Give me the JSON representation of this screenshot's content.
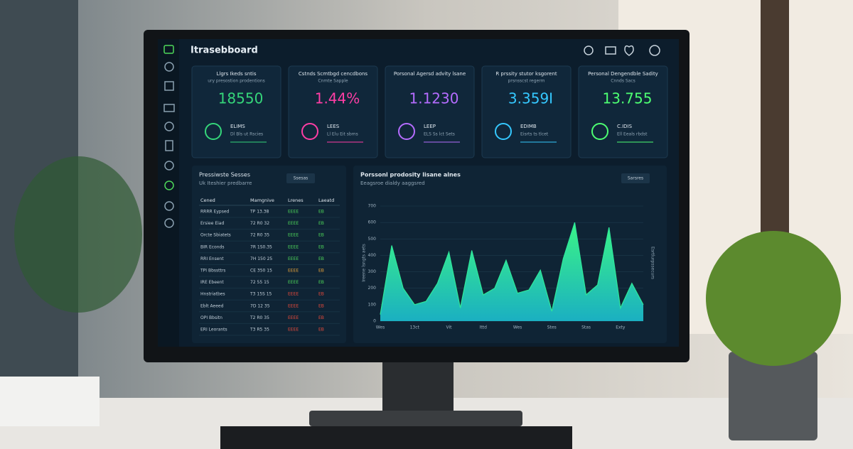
{
  "header": {
    "title": "Itrasebboard"
  },
  "cards": [
    {
      "title": "Llgrs Ikeds sntis",
      "subtitle": "ury presostion prodentions",
      "value": "18550",
      "label": "ELIMS",
      "note": "Dl Bls ut Rscies",
      "color": "#35d67a"
    },
    {
      "title": "Cstnds Scmtbgd cencdbons",
      "subtitle": "Cnmte Sapple",
      "value": "1.44%",
      "label": "LEES",
      "note": "Ll Elu Eit sbms",
      "color": "#ff3ea5"
    },
    {
      "title": "Porsonal Agersd advity lsane",
      "subtitle": "",
      "value": "1.1230",
      "label": "LEEP",
      "note": "ELS Ss lct Sets",
      "color": "#b56cff"
    },
    {
      "title": "R prssity stutor ksgorent",
      "subtitle": "prsnsscst regerm",
      "value": "3.359I",
      "label": "EDIMB",
      "note": "Eisrts ts tlcet",
      "color": "#35c8ff"
    },
    {
      "title": "Personal Dengendble Sadity",
      "subtitle": "Cnnds Sacs",
      "value": "13.755",
      "label": "C.IDIS",
      "note": "Ell Eeals rbdst",
      "color": "#4dff72"
    }
  ],
  "table": {
    "title": "Pressiwste Sesses",
    "subtitle": "Uk Iteshier predbarre",
    "button": "Ssesas",
    "columns": [
      "Cened",
      "Mamgnive",
      "Lrenes",
      "Laeatd"
    ],
    "rows": [
      [
        "RRRR Eypsed",
        "TP 13.38",
        "EEEE",
        "EB"
      ],
      [
        "Ersiee Eiad",
        "72 R0 32",
        "EEEE",
        "EB"
      ],
      [
        "Orcte Sbiatets",
        "72 R0 35",
        "EEEE",
        "EB"
      ],
      [
        "BIR Econds",
        "7R 1S0.35",
        "EEEE",
        "EB"
      ],
      [
        "RRI Ensent",
        "7H 150 25",
        "EEEE",
        "EB"
      ],
      [
        "TPI Bbssttrs",
        "CE 350 15",
        "EEEE",
        "EB"
      ],
      [
        "IRE Ebeent",
        "72 55 15",
        "EEEE",
        "EB"
      ],
      [
        "Hnstriatbes",
        "T3 15S 15",
        "EEEE",
        "EB"
      ],
      [
        "Eblt Aeeed",
        "7D 12 35",
        "EEEE",
        "EB"
      ],
      [
        "OPI Bbsitn",
        "T2 R0 35",
        "EEEE",
        "EB"
      ],
      [
        "ERI Leorants",
        "T3 R5 35",
        "EEEE",
        "EB"
      ]
    ],
    "status": [
      "#4ed85a",
      "#4ed85a",
      "#4ed85a",
      "#4ed85a",
      "#4ed85a",
      "#e8a33a",
      "#4ed85a",
      "#e84a3a",
      "#e84a3a",
      "#e84a3a",
      "#e84a3a"
    ]
  },
  "chart_data": {
    "type": "area",
    "title": "Porssonl prodosity lisane alnes",
    "subtitle": "Eeagsroe dialdy aaggsred",
    "button": "Sarsres",
    "y_label": "Ireene lsngts aets",
    "y2_label": "Esrtlurpssecurs",
    "categories": [
      "Wes",
      null,
      null,
      "13ct",
      null,
      null,
      "Vit",
      null,
      null,
      "Ittd",
      null,
      null,
      "Wes",
      null,
      null,
      "Stes",
      null,
      null,
      "Stas",
      null,
      null,
      "Exty",
      null,
      null
    ],
    "values": [
      40,
      460,
      200,
      100,
      120,
      230,
      420,
      80,
      430,
      160,
      200,
      370,
      170,
      190,
      310,
      60,
      380,
      600,
      160,
      220,
      570,
      80,
      230,
      100
    ],
    "ylim": [
      0,
      700
    ],
    "yticks": [
      0,
      100,
      200,
      300,
      400,
      500,
      600,
      700
    ],
    "grid": true,
    "color": "#2ee89a"
  }
}
